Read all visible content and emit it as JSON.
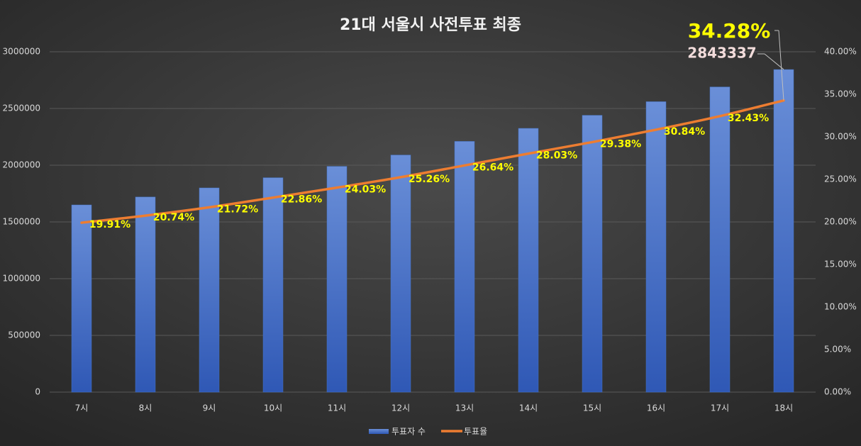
{
  "chart_data": {
    "type": "bar",
    "title": "21대 서울시 사전투표 최종",
    "categories": [
      "7시",
      "8시",
      "9시",
      "10시",
      "11시",
      "12시",
      "13시",
      "14시",
      "15시",
      "16시",
      "17시",
      "18시"
    ],
    "series": [
      {
        "name": "투표자 수",
        "type": "bar",
        "color": "#4472c4",
        "values": [
          1650000,
          1720000,
          1800000,
          1890000,
          1990000,
          2090000,
          2210000,
          2325000,
          2440000,
          2560000,
          2690000,
          2843337
        ],
        "value_labels": [
          null,
          null,
          null,
          null,
          null,
          null,
          null,
          null,
          null,
          null,
          null,
          "2843337"
        ]
      },
      {
        "name": "투표율",
        "type": "line",
        "axis": "y2",
        "color": "#ed7d31",
        "values": [
          19.91,
          20.74,
          21.72,
          22.86,
          24.03,
          25.26,
          26.64,
          28.03,
          29.38,
          30.84,
          32.43,
          34.28
        ],
        "value_labels": [
          "19.91%",
          "20.74%",
          "21.72%",
          "22.86%",
          "24.03%",
          "25.26%",
          "26.64%",
          "28.03%",
          "29.38%",
          "30.84%",
          "32.43%",
          "34.28%"
        ]
      }
    ],
    "ylim": [
      0,
      3000000
    ],
    "yticks": [
      0,
      500000,
      1000000,
      1500000,
      2000000,
      2500000,
      3000000
    ],
    "y2lim": [
      0,
      40
    ],
    "y2ticks": [
      {
        "value": 0,
        "label": "0.00%"
      },
      {
        "value": 5,
        "label": "5.00%"
      },
      {
        "value": 10,
        "label": "10.00%"
      },
      {
        "value": 15,
        "label": "15.00%"
      },
      {
        "value": 20,
        "label": "20.00%"
      },
      {
        "value": 25,
        "label": "25.00%"
      },
      {
        "value": 30,
        "label": "30.00%"
      },
      {
        "value": 35,
        "label": "35.00%"
      },
      {
        "value": 40,
        "label": "40.00%"
      }
    ],
    "grid": true,
    "legend": "bottom"
  }
}
